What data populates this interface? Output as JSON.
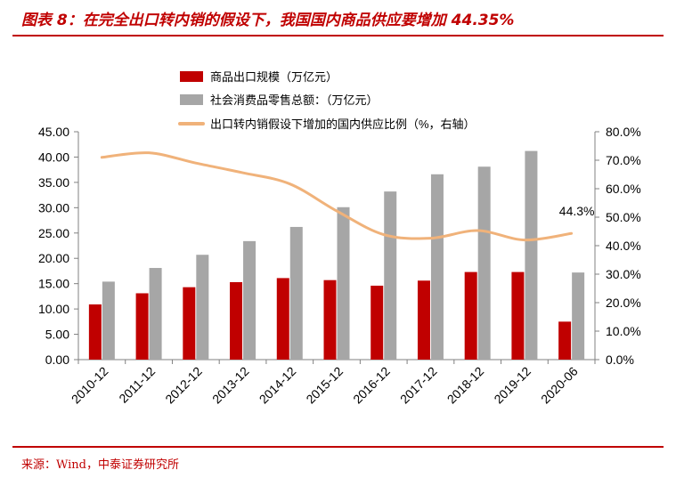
{
  "header": {
    "title": "图表 8：在完全出口转内销的假设下，我国国内商品供应要增加 44.35%"
  },
  "footer": {
    "source": "来源：Wind，中泰证券研究所"
  },
  "chart_data": {
    "type": "bar",
    "categories": [
      "2010-12",
      "2011-12",
      "2012-12",
      "2013-12",
      "2014-12",
      "2015-12",
      "2016-12",
      "2017-12",
      "2018-12",
      "2019-12",
      "2020-06"
    ],
    "series": [
      {
        "name": "商品出口规模（万亿元）",
        "type": "bar",
        "axis": "left",
        "color": "#c00000",
        "values": [
          10.9,
          13.1,
          14.3,
          15.3,
          16.1,
          15.7,
          14.6,
          15.6,
          17.3,
          17.3,
          7.5
        ]
      },
      {
        "name": "社会消费品零售总额：（万亿元）",
        "type": "bar",
        "axis": "left",
        "color": "#a6a6a6",
        "values": [
          15.4,
          18.1,
          20.7,
          23.4,
          26.2,
          30.1,
          33.2,
          36.6,
          38.1,
          41.2,
          17.2
        ]
      },
      {
        "name": "出口转内销假设下增加的国内供应比例（%，右轴）",
        "type": "line",
        "axis": "right",
        "color": "#f0b27a",
        "values": [
          71.0,
          72.6,
          69.0,
          65.6,
          61.7,
          52.2,
          43.9,
          42.6,
          45.3,
          42.0,
          44.3
        ]
      }
    ],
    "y_left": {
      "ticks": [
        "0.00",
        "5.00",
        "10.00",
        "15.00",
        "20.00",
        "25.00",
        "30.00",
        "35.00",
        "40.00",
        "45.00"
      ],
      "ylim": [
        0,
        45
      ]
    },
    "y_right": {
      "ticks": [
        "0.0%",
        "10.0%",
        "20.0%",
        "30.0%",
        "40.0%",
        "50.0%",
        "60.0%",
        "70.0%",
        "80.0%"
      ],
      "ylim": [
        0,
        80
      ]
    },
    "annotation": {
      "text": "44.3%",
      "category": "2020-06"
    },
    "legend_position": "top-center",
    "grid": false
  }
}
